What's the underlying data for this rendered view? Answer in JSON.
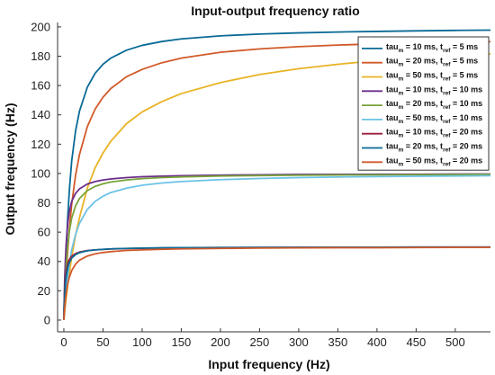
{
  "chart_data": {
    "type": "line",
    "title": "Input-output frequency ratio",
    "xlabel": "Input frequency (Hz)",
    "ylabel": "Output frequency (Hz)",
    "xlim": [
      -8,
      545
    ],
    "ylim": [
      -8,
      203
    ],
    "xticks": [
      0,
      50,
      100,
      150,
      200,
      250,
      300,
      350,
      400,
      450,
      500
    ],
    "yticks": [
      0,
      20,
      40,
      60,
      80,
      100,
      120,
      140,
      160,
      180,
      200
    ],
    "grid": false,
    "legend_position": "top-right",
    "x_sample": [
      0.5,
      1,
      2,
      3,
      5,
      7,
      10,
      15,
      20,
      30,
      40,
      50,
      60,
      80,
      100,
      125,
      150,
      200,
      250,
      300,
      350,
      400,
      450,
      500,
      545
    ],
    "series": [
      {
        "label": {
          "pre": "tau",
          "sub1": "m",
          "mid": " = 10 ms, t",
          "sub2": "ref",
          "post": " = 5 ms"
        },
        "color": "#0a6a96",
        "values": [
          8.3,
          18.9,
          35.1,
          48.5,
          70.8,
          88.4,
          108.5,
          129.2,
          142.6,
          158.9,
          168.4,
          174.5,
          178.7,
          184.1,
          187.4,
          190.0,
          191.8,
          193.9,
          195.1,
          195.9,
          196.5,
          196.9,
          197.3,
          197.6,
          197.8
        ]
      },
      {
        "label": {
          "pre": "tau",
          "sub1": "m",
          "mid": " = 20 ms, t",
          "sub2": "ref",
          "post": " = 5 ms"
        },
        "color": "#d15a2a",
        "values": [
          5.2,
          11.5,
          22.0,
          31.5,
          48.0,
          62.0,
          79.0,
          99.0,
          113.0,
          132.0,
          144.0,
          152.0,
          158.0,
          166.0,
          171.0,
          175.5,
          178.7,
          182.7,
          185.0,
          186.5,
          187.6,
          188.4,
          189.0,
          189.5,
          189.9
        ]
      },
      {
        "label": {
          "pre": "tau",
          "sub1": "m",
          "mid": " = 50 ms, t",
          "sub2": "ref",
          "post": " = 5 ms"
        },
        "color": "#e8b325",
        "values": [
          2.5,
          5.5,
          10.5,
          15.2,
          24.0,
          32.0,
          43.0,
          58.0,
          70.0,
          90.0,
          104.0,
          114.0,
          122.0,
          134.0,
          142.0,
          149.0,
          154.5,
          162.0,
          167.5,
          171.5,
          174.5,
          177.0,
          179.0,
          180.5,
          181.6
        ]
      },
      {
        "label": {
          "pre": "tau",
          "sub1": "m",
          "mid": " = 10 ms, t",
          "sub2": "ref",
          "post": " = 10 ms"
        },
        "color": "#6c2d8a",
        "values": [
          14.5,
          26.5,
          41.5,
          52.5,
          66.0,
          74.0,
          81.0,
          86.5,
          89.5,
          92.8,
          94.5,
          95.6,
          96.3,
          97.2,
          97.8,
          98.2,
          98.5,
          98.9,
          99.1,
          99.3,
          99.4,
          99.5,
          99.5,
          99.6,
          99.6
        ]
      },
      {
        "label": {
          "pre": "tau",
          "sub1": "m",
          "mid": " = 20 ms, t",
          "sub2": "ref",
          "post": " = 10 ms"
        },
        "color": "#79a33a",
        "values": [
          8.5,
          16.5,
          28.0,
          37.5,
          51.0,
          60.5,
          69.5,
          78.0,
          83.0,
          88.3,
          91.2,
          93.0,
          94.2,
          95.6,
          96.5,
          97.2,
          97.7,
          98.3,
          98.6,
          98.8,
          99.0,
          99.1,
          99.2,
          99.3,
          99.4
        ]
      },
      {
        "label": {
          "pre": "tau",
          "sub1": "m",
          "mid": " = 50 ms, t",
          "sub2": "ref",
          "post": " = 10 ms"
        },
        "color": "#6cc2e6",
        "values": [
          4.0,
          8.0,
          14.5,
          20.5,
          30.5,
          38.5,
          48.0,
          58.5,
          66.0,
          75.5,
          81.0,
          84.5,
          87.0,
          90.0,
          92.0,
          93.5,
          94.5,
          95.8,
          96.6,
          97.2,
          97.6,
          97.9,
          98.1,
          98.3,
          98.5
        ]
      },
      {
        "label": {
          "pre": "tau",
          "sub1": "m",
          "mid": " = 10 ms, t",
          "sub2": "ref",
          "post": " = 20 ms"
        },
        "color": "#9e1e3a",
        "values": [
          13.0,
          20.5,
          28.8,
          33.6,
          38.7,
          41.3,
          43.6,
          45.4,
          46.4,
          47.4,
          47.9,
          48.2,
          48.5,
          48.8,
          49.0,
          49.2,
          49.3,
          49.5,
          49.6,
          49.6,
          49.7,
          49.7,
          49.8,
          49.8,
          49.8
        ]
      },
      {
        "label": {
          "pre": "tau",
          "sub1": "m",
          "mid": " = 20 ms, t",
          "sub2": "ref",
          "post": " = 20 ms"
        },
        "color": "#0a6a96",
        "values": [
          10.5,
          17.0,
          25.0,
          30.0,
          36.0,
          39.3,
          42.3,
          44.7,
          46.0,
          47.3,
          47.9,
          48.3,
          48.6,
          48.9,
          49.1,
          49.3,
          49.4,
          49.5,
          49.6,
          49.7,
          49.7,
          49.7,
          49.8,
          49.8,
          49.8
        ]
      },
      {
        "label": {
          "pre": "tau",
          "sub1": "m",
          "mid": " = 50 ms, t",
          "sub2": "ref",
          "post": " = 20 ms"
        },
        "color": "#d15a2a",
        "values": [
          4.0,
          7.7,
          13.6,
          18.2,
          24.8,
          29.2,
          33.8,
          38.2,
          40.9,
          43.7,
          45.2,
          46.1,
          46.7,
          47.5,
          47.9,
          48.3,
          48.6,
          48.9,
          49.1,
          49.3,
          49.4,
          49.4,
          49.5,
          49.6,
          49.6
        ]
      }
    ]
  }
}
